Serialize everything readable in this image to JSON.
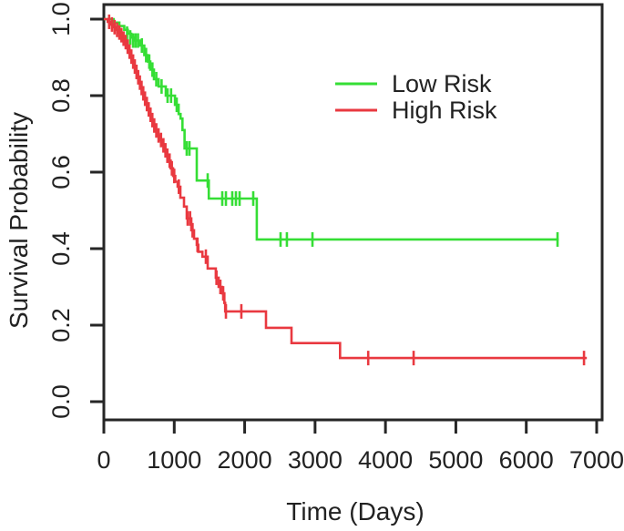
{
  "figure": {
    "background": "#ffffff",
    "axis_color": "#262626",
    "text_color": "#222222"
  },
  "chart_data": {
    "type": "line",
    "subtype": "kaplan-meier-step-survival",
    "title": "",
    "xlabel": "Time (Days)",
    "ylabel": "Survival Probability",
    "xlim": [
      0,
      7000
    ],
    "ylim": [
      0.0,
      1.0
    ],
    "grid": false,
    "x_ticks": {
      "values": [
        0,
        1000,
        2000,
        3000,
        4000,
        5000,
        6000,
        7000
      ],
      "labels": [
        "0",
        "1000",
        "2000",
        "3000",
        "4000",
        "5000",
        "6000",
        "7000"
      ]
    },
    "y_ticks": {
      "values": [
        0.0,
        0.2,
        0.4,
        0.6,
        0.8,
        1.0
      ],
      "labels": [
        "0.0",
        "0.2",
        "0.4",
        "0.6",
        "0.8",
        "1.0"
      ]
    },
    "legend": {
      "position": "inside-upper-right",
      "entries": [
        "Low Risk",
        "High Risk"
      ]
    },
    "series": [
      {
        "name": "Low Risk",
        "color": "#35DE35",
        "steps": [
          [
            0,
            1.0
          ],
          [
            140,
            0.991
          ],
          [
            220,
            0.982
          ],
          [
            290,
            0.972
          ],
          [
            340,
            0.962
          ],
          [
            390,
            0.952
          ],
          [
            440,
            0.944
          ],
          [
            510,
            0.931
          ],
          [
            575,
            0.906
          ],
          [
            625,
            0.889
          ],
          [
            660,
            0.868
          ],
          [
            712,
            0.843
          ],
          [
            777,
            0.824
          ],
          [
            880,
            0.8
          ],
          [
            1010,
            0.776
          ],
          [
            1062,
            0.752
          ],
          [
            1090,
            0.74
          ],
          [
            1117,
            0.71
          ],
          [
            1147,
            0.662
          ],
          [
            1320,
            0.578
          ],
          [
            1490,
            0.531
          ],
          [
            2173,
            0.424
          ],
          [
            6460,
            0.424
          ]
        ],
        "censor_marks": [
          [
            330,
            0.962
          ],
          [
            375,
            0.952
          ],
          [
            415,
            0.944
          ],
          [
            450,
            0.944
          ],
          [
            485,
            0.944
          ],
          [
            540,
            0.931
          ],
          [
            600,
            0.906
          ],
          [
            645,
            0.889
          ],
          [
            690,
            0.868
          ],
          [
            745,
            0.843
          ],
          [
            820,
            0.824
          ],
          [
            905,
            0.8
          ],
          [
            955,
            0.8
          ],
          [
            1035,
            0.776
          ],
          [
            1177,
            0.662
          ],
          [
            1216,
            0.662
          ],
          [
            1475,
            0.578
          ],
          [
            1682,
            0.531
          ],
          [
            1734,
            0.531
          ],
          [
            1824,
            0.531
          ],
          [
            1876,
            0.531
          ],
          [
            1928,
            0.531
          ],
          [
            2122,
            0.531
          ],
          [
            2510,
            0.424
          ],
          [
            2600,
            0.424
          ],
          [
            2963,
            0.424
          ],
          [
            6444,
            0.424
          ]
        ]
      },
      {
        "name": "High Risk",
        "color": "#E93940",
        "steps": [
          [
            0,
            1.0
          ],
          [
            55,
            0.993
          ],
          [
            95,
            0.986
          ],
          [
            135,
            0.979
          ],
          [
            170,
            0.972
          ],
          [
            205,
            0.965
          ],
          [
            235,
            0.958
          ],
          [
            265,
            0.949
          ],
          [
            295,
            0.94
          ],
          [
            325,
            0.928
          ],
          [
            352,
            0.915
          ],
          [
            378,
            0.902
          ],
          [
            404,
            0.889
          ],
          [
            428,
            0.876
          ],
          [
            452,
            0.862
          ],
          [
            476,
            0.848
          ],
          [
            500,
            0.834
          ],
          [
            524,
            0.82
          ],
          [
            548,
            0.806
          ],
          [
            572,
            0.792
          ],
          [
            598,
            0.778
          ],
          [
            624,
            0.764
          ],
          [
            650,
            0.75
          ],
          [
            676,
            0.736
          ],
          [
            702,
            0.722
          ],
          [
            730,
            0.709
          ],
          [
            760,
            0.696
          ],
          [
            795,
            0.684
          ],
          [
            830,
            0.67
          ],
          [
            862,
            0.657
          ],
          [
            888,
            0.643
          ],
          [
            918,
            0.63
          ],
          [
            950,
            0.61
          ],
          [
            983,
            0.59
          ],
          [
            1015,
            0.575
          ],
          [
            1048,
            0.562
          ],
          [
            1087,
            0.533
          ],
          [
            1139,
            0.51
          ],
          [
            1177,
            0.479
          ],
          [
            1242,
            0.448
          ],
          [
            1281,
            0.426
          ],
          [
            1320,
            0.41
          ],
          [
            1342,
            0.392
          ],
          [
            1400,
            0.379
          ],
          [
            1475,
            0.348
          ],
          [
            1590,
            0.324
          ],
          [
            1630,
            0.3
          ],
          [
            1680,
            0.283
          ],
          [
            1712,
            0.258
          ],
          [
            1724,
            0.236
          ],
          [
            2303,
            0.193
          ],
          [
            2665,
            0.153
          ],
          [
            3355,
            0.114
          ],
          [
            6860,
            0.114
          ]
        ],
        "censor_marks": [
          [
            75,
            0.993
          ],
          [
            115,
            0.986
          ],
          [
            152,
            0.979
          ],
          [
            188,
            0.972
          ],
          [
            220,
            0.965
          ],
          [
            250,
            0.958
          ],
          [
            280,
            0.949
          ],
          [
            310,
            0.94
          ],
          [
            338,
            0.928
          ],
          [
            365,
            0.915
          ],
          [
            391,
            0.902
          ],
          [
            416,
            0.889
          ],
          [
            440,
            0.876
          ],
          [
            464,
            0.862
          ],
          [
            488,
            0.848
          ],
          [
            512,
            0.834
          ],
          [
            536,
            0.82
          ],
          [
            560,
            0.806
          ],
          [
            585,
            0.792
          ],
          [
            611,
            0.778
          ],
          [
            637,
            0.764
          ],
          [
            663,
            0.75
          ],
          [
            689,
            0.736
          ],
          [
            716,
            0.722
          ],
          [
            745,
            0.709
          ],
          [
            777,
            0.696
          ],
          [
            812,
            0.684
          ],
          [
            846,
            0.67
          ],
          [
            875,
            0.657
          ],
          [
            902,
            0.643
          ],
          [
            934,
            0.63
          ],
          [
            966,
            0.61
          ],
          [
            1000,
            0.59
          ],
          [
            1065,
            0.562
          ],
          [
            1190,
            0.479
          ],
          [
            1225,
            0.479
          ],
          [
            1260,
            0.448
          ],
          [
            1330,
            0.41
          ],
          [
            1449,
            0.379
          ],
          [
            1600,
            0.324
          ],
          [
            1655,
            0.3
          ],
          [
            1695,
            0.283
          ],
          [
            1734,
            0.236
          ],
          [
            1953,
            0.236
          ],
          [
            3755,
            0.114
          ],
          [
            4400,
            0.114
          ],
          [
            6820,
            0.114
          ]
        ]
      }
    ]
  }
}
